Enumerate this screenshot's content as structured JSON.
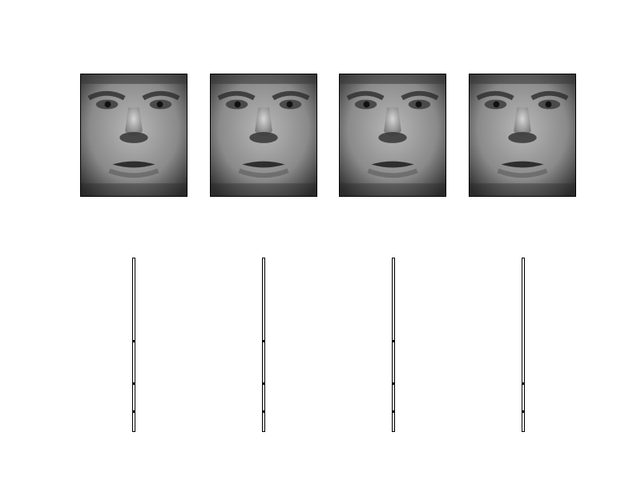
{
  "figure": {
    "faces": [
      {
        "id": "face-1",
        "image": "grayscale-face-portrait"
      },
      {
        "id": "face-2",
        "image": "grayscale-face-portrait"
      },
      {
        "id": "face-3",
        "image": "grayscale-face-portrait"
      },
      {
        "id": "face-4",
        "image": "grayscale-face-portrait"
      }
    ],
    "strips": [
      {
        "id": "strip-1",
        "ticks": [
          0.47,
          0.71,
          0.87
        ]
      },
      {
        "id": "strip-2",
        "ticks": [
          0.47,
          0.71,
          0.87
        ]
      },
      {
        "id": "strip-3",
        "ticks": [
          0.47,
          0.71,
          0.87
        ]
      },
      {
        "id": "strip-4",
        "ticks": [
          0.71,
          0.87
        ]
      }
    ]
  }
}
